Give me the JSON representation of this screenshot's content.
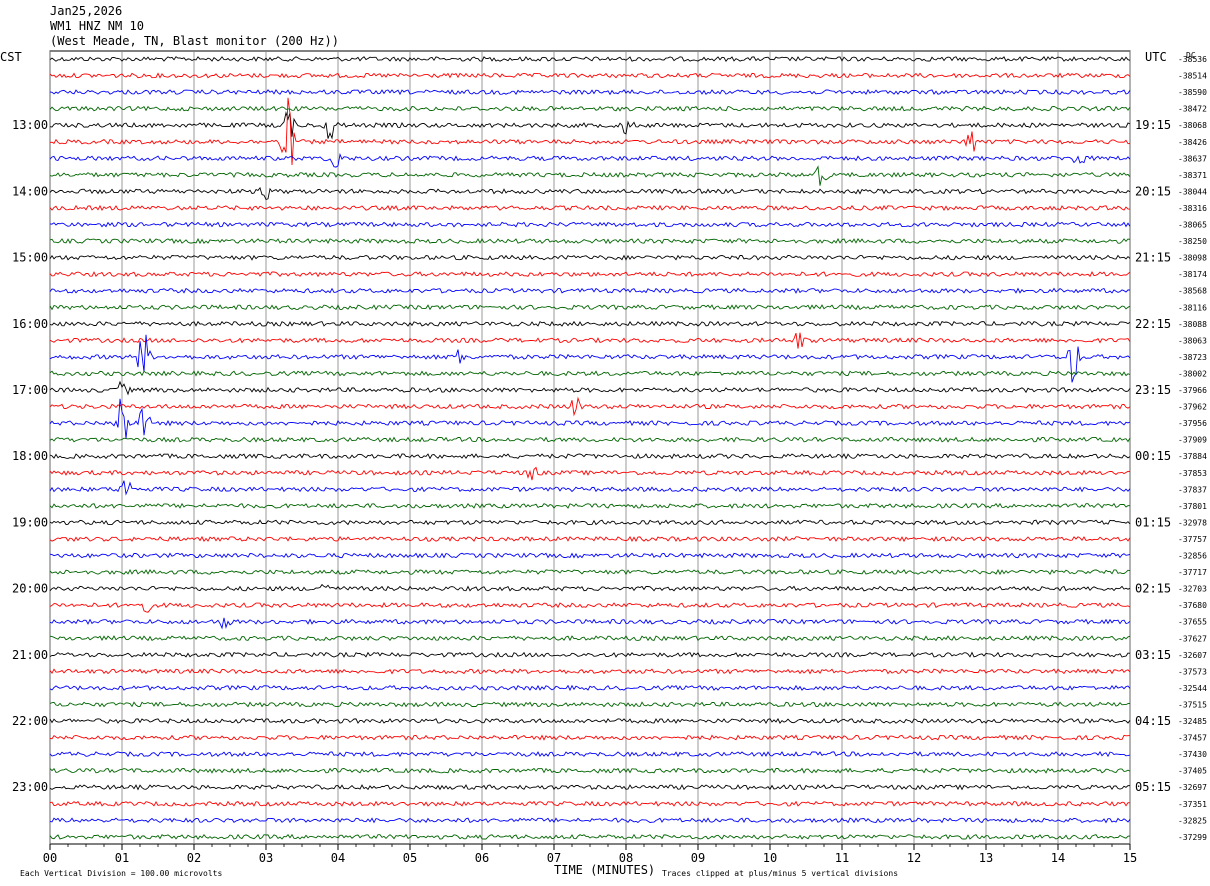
{
  "header": {
    "date": "Jan25,2026",
    "station": "WM1 HNZ NM 10",
    "location": "(West Meade, TN, Blast monitor (200 Hz))"
  },
  "labels": {
    "left_tz": "CST",
    "right_tz": "UTC",
    "dc": "DC",
    "footer_left": "Each Vertical Division =  100.00 microvolts",
    "footer_right": "Traces clipped at plus/minus 5 vertical divisions"
  },
  "colors": {
    "cycle": [
      "#000000",
      "#ff0000",
      "#0000ff",
      "#006400"
    ],
    "grid": "#808080"
  },
  "chart_data": {
    "type": "line",
    "title": "",
    "xlabel": "TIME (MINUTES)",
    "xlim": [
      0,
      15
    ],
    "x_ticks": [
      "00",
      "01",
      "02",
      "03",
      "04",
      "05",
      "06",
      "07",
      "08",
      "09",
      "10",
      "11",
      "12",
      "13",
      "14",
      "15"
    ],
    "row_count": 48,
    "left_hour_labels": [
      "13:00",
      "14:00",
      "15:00",
      "16:00",
      "17:00",
      "18:00",
      "19:00",
      "20:00",
      "21:00",
      "22:00",
      "23:00"
    ],
    "right_hour_labels": [
      "19:15",
      "20:15",
      "21:15",
      "22:15",
      "23:15",
      "00:15",
      "01:15",
      "02:15",
      "03:15",
      "04:15",
      "05:15"
    ],
    "dc_offsets": [
      "-38536",
      "-38514",
      "-38590",
      "-38472",
      "-38068",
      "-38426",
      "-38637",
      "-38371",
      "-38044",
      "-38316",
      "-38065",
      "-38250",
      "-38098",
      "-38174",
      "-38568",
      "-38116",
      "-38088",
      "-38063",
      "-38723",
      "-38002",
      "-37966",
      "-37962",
      "-37956",
      "-37909",
      "-37884",
      "-37853",
      "-37837",
      "-37801",
      "-32978",
      "-37757",
      "-32856",
      "-37717",
      "-32703",
      "-37680",
      "-37655",
      "-37627",
      "-32607",
      "-37573",
      "-32544",
      "-37515",
      "-32485",
      "-37457",
      "-37430",
      "-37405",
      "-32697",
      "-37351",
      "-32825",
      "-37299"
    ],
    "events": [
      {
        "row": 4,
        "minute": 3.3,
        "amp": 2.0
      },
      {
        "row": 5,
        "minute": 3.3,
        "amp": 4.5
      },
      {
        "row": 4,
        "minute": 3.9,
        "amp": 1.8
      },
      {
        "row": 6,
        "minute": 3.95,
        "amp": 1.5
      },
      {
        "row": 5,
        "minute": 12.8,
        "amp": 1.2
      },
      {
        "row": 4,
        "minute": 8.0,
        "amp": 1.0
      },
      {
        "row": 6,
        "minute": 14.3,
        "amp": 0.8
      },
      {
        "row": 7,
        "minute": 10.7,
        "amp": 1.2
      },
      {
        "row": 8,
        "minute": 3.0,
        "amp": 0.8
      },
      {
        "row": 17,
        "minute": 10.4,
        "amp": 1.0
      },
      {
        "row": 18,
        "minute": 1.3,
        "amp": 2.8
      },
      {
        "row": 18,
        "minute": 14.2,
        "amp": 3.0
      },
      {
        "row": 18,
        "minute": 5.7,
        "amp": 0.8
      },
      {
        "row": 20,
        "minute": 1.0,
        "amp": 0.8
      },
      {
        "row": 21,
        "minute": 7.3,
        "amp": 1.0
      },
      {
        "row": 22,
        "minute": 1.0,
        "amp": 3.5
      },
      {
        "row": 22,
        "minute": 1.3,
        "amp": 1.5
      },
      {
        "row": 25,
        "minute": 6.7,
        "amp": 0.8
      },
      {
        "row": 26,
        "minute": 1.05,
        "amp": 1.2
      },
      {
        "row": 32,
        "minute": 3.8,
        "amp": 0.8
      },
      {
        "row": 33,
        "minute": 1.3,
        "amp": 1.0
      },
      {
        "row": 34,
        "minute": 2.4,
        "amp": 0.7
      }
    ]
  }
}
